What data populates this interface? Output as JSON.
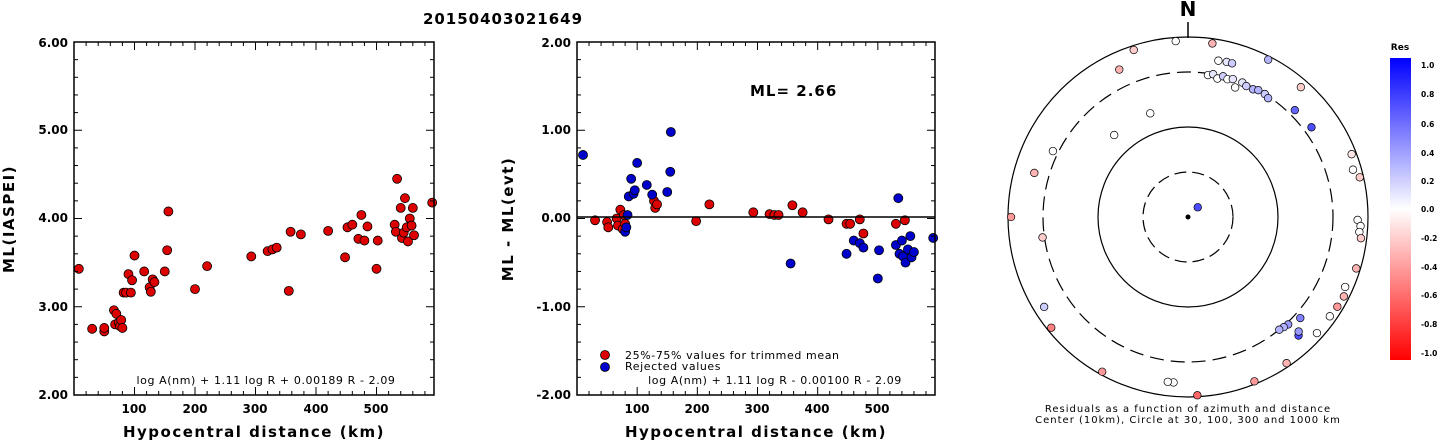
{
  "figure_title": "20150403021649",
  "chart_data": [
    {
      "type": "scatter",
      "id": "ml-vs-distance",
      "xlabel": "Hypocentral distance (km)",
      "ylabel": "ML(IASPEI)",
      "xlim": [
        0,
        595
      ],
      "ylim": [
        2.0,
        6.0
      ],
      "xticks": [
        "100",
        "200",
        "300",
        "400",
        "500"
      ],
      "yticks": [
        "2.00",
        "3.00",
        "4.00",
        "5.00",
        "6.00"
      ],
      "formula": "log A(nm) + 1.11 log R + 0.00189 R - 2.09",
      "marker_color": "#dd0000",
      "points": [
        {
          "x": 8,
          "y": 3.43
        },
        {
          "x": 30,
          "y": 2.75
        },
        {
          "x": 50,
          "y": 2.72
        },
        {
          "x": 50,
          "y": 2.76
        },
        {
          "x": 66,
          "y": 2.96
        },
        {
          "x": 68,
          "y": 2.8
        },
        {
          "x": 70,
          "y": 2.92
        },
        {
          "x": 74,
          "y": 2.82
        },
        {
          "x": 76,
          "y": 2.78
        },
        {
          "x": 78,
          "y": 2.85
        },
        {
          "x": 80,
          "y": 2.76
        },
        {
          "x": 82,
          "y": 3.16
        },
        {
          "x": 86,
          "y": 3.16
        },
        {
          "x": 90,
          "y": 3.37
        },
        {
          "x": 94,
          "y": 3.16
        },
        {
          "x": 96,
          "y": 3.3
        },
        {
          "x": 100,
          "y": 3.58
        },
        {
          "x": 116,
          "y": 3.4
        },
        {
          "x": 125,
          "y": 3.22
        },
        {
          "x": 127,
          "y": 3.17
        },
        {
          "x": 130,
          "y": 3.31
        },
        {
          "x": 133,
          "y": 3.28
        },
        {
          "x": 150,
          "y": 3.4
        },
        {
          "x": 154,
          "y": 3.64
        },
        {
          "x": 156,
          "y": 4.08
        },
        {
          "x": 200,
          "y": 3.2
        },
        {
          "x": 220,
          "y": 3.46
        },
        {
          "x": 293,
          "y": 3.57
        },
        {
          "x": 320,
          "y": 3.63
        },
        {
          "x": 328,
          "y": 3.65
        },
        {
          "x": 335,
          "y": 3.67
        },
        {
          "x": 355,
          "y": 3.18
        },
        {
          "x": 358,
          "y": 3.85
        },
        {
          "x": 375,
          "y": 3.82
        },
        {
          "x": 420,
          "y": 3.86
        },
        {
          "x": 448,
          "y": 3.56
        },
        {
          "x": 452,
          "y": 3.9
        },
        {
          "x": 460,
          "y": 3.93
        },
        {
          "x": 470,
          "y": 3.77
        },
        {
          "x": 475,
          "y": 4.04
        },
        {
          "x": 480,
          "y": 3.75
        },
        {
          "x": 485,
          "y": 3.91
        },
        {
          "x": 500,
          "y": 3.43
        },
        {
          "x": 502,
          "y": 3.75
        },
        {
          "x": 530,
          "y": 3.93
        },
        {
          "x": 532,
          "y": 3.85
        },
        {
          "x": 534,
          "y": 4.45
        },
        {
          "x": 540,
          "y": 4.12
        },
        {
          "x": 542,
          "y": 3.78
        },
        {
          "x": 545,
          "y": 3.84
        },
        {
          "x": 547,
          "y": 4.23
        },
        {
          "x": 550,
          "y": 3.9
        },
        {
          "x": 552,
          "y": 3.74
        },
        {
          "x": 555,
          "y": 4.0
        },
        {
          "x": 558,
          "y": 3.92
        },
        {
          "x": 560,
          "y": 4.12
        },
        {
          "x": 562,
          "y": 3.81
        },
        {
          "x": 592,
          "y": 4.18
        }
      ]
    },
    {
      "type": "scatter",
      "id": "residual-vs-distance",
      "xlabel": "Hypocentral distance (km)",
      "ylabel": "ML - ML(evt)",
      "xlim": [
        0,
        595
      ],
      "ylim": [
        -2.0,
        2.0
      ],
      "xticks": [
        "100",
        "200",
        "300",
        "400",
        "500"
      ],
      "yticks": [
        "-2.00",
        "-1.00",
        "0.00",
        "1.00",
        "2.00"
      ],
      "ml_label": "ML= 2.66",
      "formula": "log A(nm) + 1.11 log R - 0.00100 R - 2.09",
      "legend": [
        {
          "label": "25%-75% values for trimmed mean",
          "color": "#dd0000"
        },
        {
          "label": "Rejected values",
          "color": "#0000cc"
        }
      ],
      "series": [
        {
          "color": "#dd0000",
          "points": [
            {
              "x": 30,
              "y": -0.02
            },
            {
              "x": 50,
              "y": -0.04
            },
            {
              "x": 52,
              "y": -0.1
            },
            {
              "x": 66,
              "y": 0.0
            },
            {
              "x": 68,
              "y": -0.08
            },
            {
              "x": 72,
              "y": 0.1
            },
            {
              "x": 76,
              "y": -0.12
            },
            {
              "x": 78,
              "y": 0.04
            },
            {
              "x": 80,
              "y": -0.06
            },
            {
              "x": 128,
              "y": 0.2
            },
            {
              "x": 130,
              "y": 0.12
            },
            {
              "x": 133,
              "y": 0.16
            },
            {
              "x": 198,
              "y": -0.03
            },
            {
              "x": 220,
              "y": 0.16
            },
            {
              "x": 293,
              "y": 0.07
            },
            {
              "x": 320,
              "y": 0.05
            },
            {
              "x": 328,
              "y": 0.04
            },
            {
              "x": 335,
              "y": 0.04
            },
            {
              "x": 358,
              "y": 0.15
            },
            {
              "x": 375,
              "y": 0.07
            },
            {
              "x": 418,
              "y": -0.01
            },
            {
              "x": 448,
              "y": -0.06
            },
            {
              "x": 454,
              "y": -0.06
            },
            {
              "x": 470,
              "y": -0.01
            },
            {
              "x": 476,
              "y": -0.17
            },
            {
              "x": 530,
              "y": -0.06
            },
            {
              "x": 545,
              "y": -0.02
            }
          ]
        },
        {
          "color": "#0000cc",
          "points": [
            {
              "x": 10,
              "y": 0.72
            },
            {
              "x": 80,
              "y": -0.15
            },
            {
              "x": 82,
              "y": -0.1
            },
            {
              "x": 84,
              "y": 0.04
            },
            {
              "x": 86,
              "y": 0.25
            },
            {
              "x": 90,
              "y": 0.45
            },
            {
              "x": 94,
              "y": 0.28
            },
            {
              "x": 96,
              "y": 0.32
            },
            {
              "x": 100,
              "y": 0.63
            },
            {
              "x": 116,
              "y": 0.38
            },
            {
              "x": 125,
              "y": 0.27
            },
            {
              "x": 150,
              "y": 0.3
            },
            {
              "x": 155,
              "y": 0.53
            },
            {
              "x": 156,
              "y": 0.98
            },
            {
              "x": 355,
              "y": -0.51
            },
            {
              "x": 460,
              "y": -0.25
            },
            {
              "x": 470,
              "y": -0.28
            },
            {
              "x": 476,
              "y": -0.33
            },
            {
              "x": 448,
              "y": -0.4
            },
            {
              "x": 500,
              "y": -0.68
            },
            {
              "x": 502,
              "y": -0.36
            },
            {
              "x": 530,
              "y": -0.3
            },
            {
              "x": 534,
              "y": 0.23
            },
            {
              "x": 536,
              "y": -0.4
            },
            {
              "x": 540,
              "y": -0.25
            },
            {
              "x": 542,
              "y": -0.43
            },
            {
              "x": 546,
              "y": -0.5
            },
            {
              "x": 550,
              "y": -0.35
            },
            {
              "x": 554,
              "y": -0.2
            },
            {
              "x": 556,
              "y": -0.44
            },
            {
              "x": 560,
              "y": -0.38
            },
            {
              "x": 592,
              "y": -0.22
            }
          ]
        }
      ]
    },
    {
      "type": "scatter",
      "id": "azimuth-residuals",
      "north_label": "N",
      "caption_line1": "Residuals as a function of azimuth and distance",
      "caption_line2": "Center (10km), Circle at 30, 100, 300 and 1000 km",
      "colorbar": {
        "title": "Res",
        "ticks": [
          "1.0",
          "0.8",
          "0.6",
          "0.4",
          "0.2",
          "0.0",
          "-0.2",
          "-0.4",
          "-0.6",
          "-0.8",
          "-1.0"
        ],
        "max_color": "#0000ff",
        "mid_color": "#ffffff",
        "min_color": "#ff0000"
      },
      "stations": [
        {
          "az": 45,
          "dist_km": 14,
          "res": 0.7
        },
        {
          "az": 340,
          "dist_km": 150,
          "res": 0.0
        },
        {
          "az": 318,
          "dist_km": 150,
          "res": 0.0
        },
        {
          "az": 262,
          "dist_km": 320,
          "res": -0.2
        },
        {
          "az": 296,
          "dist_km": 360,
          "res": 0.0
        },
        {
          "az": 286,
          "dist_km": 500,
          "res": -0.3
        },
        {
          "az": 270,
          "dist_km": 900,
          "res": -0.4
        },
        {
          "az": 335,
          "dist_km": 550,
          "res": -0.3
        },
        {
          "az": 342,
          "dist_km": 860,
          "res": -0.2
        },
        {
          "az": 356,
          "dist_km": 880,
          "res": 0.0
        },
        {
          "az": 8,
          "dist_km": 850,
          "res": -0.3
        },
        {
          "az": 27,
          "dist_km": 890,
          "res": 0.3
        },
        {
          "az": 11,
          "dist_km": 490,
          "res": 0.0
        },
        {
          "az": 14,
          "dist_km": 500,
          "res": 0.1
        },
        {
          "az": 16,
          "dist_km": 500,
          "res": 0.2
        },
        {
          "az": 41,
          "dist_km": 760,
          "res": -0.2
        },
        {
          "az": 8,
          "dist_km": 290,
          "res": 0.0
        },
        {
          "az": 10,
          "dist_km": 300,
          "res": 0.1
        },
        {
          "az": 12,
          "dist_km": 280,
          "res": 0.0
        },
        {
          "az": 14,
          "dist_km": 300,
          "res": 0.2
        },
        {
          "az": 16,
          "dist_km": 290,
          "res": 0.0
        },
        {
          "az": 18,
          "dist_km": 300,
          "res": 0.1
        },
        {
          "az": 20,
          "dist_km": 260,
          "res": 0.0
        },
        {
          "az": 22,
          "dist_km": 300,
          "res": 0.1
        },
        {
          "az": 24,
          "dist_km": 290,
          "res": 0.2
        },
        {
          "az": 27,
          "dist_km": 290,
          "res": 0.3
        },
        {
          "az": 29,
          "dist_km": 300,
          "res": 0.3
        },
        {
          "az": 32,
          "dist_km": 300,
          "res": 0.2
        },
        {
          "az": 34,
          "dist_km": 290,
          "res": 0.3
        },
        {
          "az": 45,
          "dist_km": 370,
          "res": 0.6
        },
        {
          "az": 54,
          "dist_km": 390,
          "res": 0.7
        },
        {
          "az": 69,
          "dist_km": 850,
          "res": -0.1
        },
        {
          "az": 74,
          "dist_km": 750,
          "res": 0.0
        },
        {
          "az": 77,
          "dist_km": 880,
          "res": -0.2
        },
        {
          "az": 91,
          "dist_km": 700,
          "res": 0.0
        },
        {
          "az": 93,
          "dist_km": 780,
          "res": 0.0
        },
        {
          "az": 95,
          "dist_km": 760,
          "res": 0.0
        },
        {
          "az": 97,
          "dist_km": 820,
          "res": -0.2
        },
        {
          "az": 107,
          "dist_km": 870,
          "res": -0.3
        },
        {
          "az": 114,
          "dist_km": 760,
          "res": 0.0
        },
        {
          "az": 117,
          "dist_km": 840,
          "res": -0.3
        },
        {
          "az": 121,
          "dist_km": 820,
          "res": -0.4
        },
        {
          "az": 125,
          "dist_km": 790,
          "res": 0.0
        },
        {
          "az": 137,
          "dist_km": 540,
          "res": 0.7
        },
        {
          "az": 132,
          "dist_km": 370,
          "res": 0.5
        },
        {
          "az": 136,
          "dist_km": 490,
          "res": 0.4
        },
        {
          "az": 137,
          "dist_km": 320,
          "res": 0.4
        },
        {
          "az": 139,
          "dist_km": 310,
          "res": 0.3
        },
        {
          "az": 141,
          "dist_km": 300,
          "res": 0.3
        },
        {
          "az": 132,
          "dist_km": 800,
          "res": 0.0
        },
        {
          "az": 146,
          "dist_km": 880,
          "res": -0.3
        },
        {
          "az": 158,
          "dist_km": 910,
          "res": -0.4
        },
        {
          "az": 177,
          "dist_km": 950,
          "res": -0.6
        },
        {
          "az": 185,
          "dist_km": 620,
          "res": 0.0
        },
        {
          "az": 187,
          "dist_km": 620,
          "res": 0.0
        },
        {
          "az": 209,
          "dist_km": 900,
          "res": -0.4
        },
        {
          "az": 231,
          "dist_km": 870,
          "res": -0.5
        },
        {
          "az": 238,
          "dist_km": 700,
          "res": 0.2
        }
      ]
    }
  ]
}
